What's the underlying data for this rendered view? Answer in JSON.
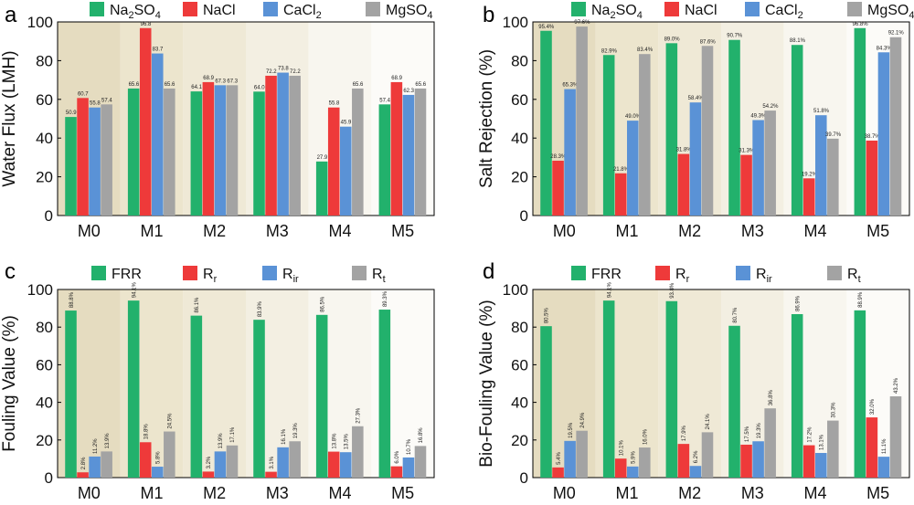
{
  "colors": {
    "green": "#22b16c",
    "red": "#ee3a3a",
    "blue": "#5a92d6",
    "gray": "#a3a3a3"
  },
  "chart_data": [
    {
      "panel_label": "a",
      "type": "bar",
      "ylabel": "Water Flux (LMH)",
      "ylim": [
        0,
        100
      ],
      "yticks": [
        0,
        20,
        40,
        60,
        80,
        100
      ],
      "categories": [
        "M0",
        "M1",
        "M2",
        "M3",
        "M4",
        "M5"
      ],
      "legend": [
        {
          "main": "Na",
          "sub": "2",
          "rest": "SO",
          "sub2": "4"
        },
        {
          "main": "NaCl",
          "sub": "",
          "rest": "",
          "sub2": ""
        },
        {
          "main": "CaCl",
          "sub": "2",
          "rest": "",
          "sub2": ""
        },
        {
          "main": "MgSO",
          "sub": "4",
          "rest": "",
          "sub2": ""
        }
      ],
      "series": [
        {
          "values": [
            50.9,
            65.6,
            64.1,
            64.0,
            27.9,
            57.4
          ],
          "labels": [
            "50.9",
            "65.6",
            "64.1",
            "64.0",
            "27.9",
            "57.4"
          ]
        },
        {
          "values": [
            60.7,
            96.8,
            68.9,
            72.2,
            55.8,
            68.9
          ],
          "labels": [
            "60.7",
            "96.8",
            "68.9",
            "72.2",
            "55.8",
            "68.9"
          ]
        },
        {
          "values": [
            55.8,
            83.7,
            67.3,
            73.8,
            45.9,
            62.3
          ],
          "labels": [
            "55.8",
            "83.7",
            "67.3",
            "73.8",
            "45.9",
            "62.3"
          ]
        },
        {
          "values": [
            57.4,
            65.6,
            67.3,
            72.2,
            65.6,
            65.6
          ],
          "labels": [
            "57.4",
            "65.6",
            "67.3",
            "72.2",
            "65.6",
            "65.6"
          ]
        }
      ]
    },
    {
      "panel_label": "b",
      "type": "bar",
      "ylabel": "Salt Rejection (%)",
      "ylim": [
        0,
        100
      ],
      "yticks": [
        0,
        20,
        40,
        60,
        80,
        100
      ],
      "categories": [
        "M0",
        "M1",
        "M2",
        "M3",
        "M4",
        "M5"
      ],
      "legend": [
        {
          "main": "Na",
          "sub": "2",
          "rest": "SO",
          "sub2": "4"
        },
        {
          "main": "NaCl",
          "sub": "",
          "rest": "",
          "sub2": ""
        },
        {
          "main": "CaCl",
          "sub": "2",
          "rest": "",
          "sub2": ""
        },
        {
          "main": "MgSO",
          "sub": "4",
          "rest": "",
          "sub2": ""
        }
      ],
      "series": [
        {
          "values": [
            95.4,
            82.9,
            89.0,
            90.7,
            88.1,
            96.8
          ],
          "labels": [
            "95.4%",
            "82.9%",
            "89.0%",
            "90.7%",
            "88.1%",
            "96.8%"
          ]
        },
        {
          "values": [
            28.3,
            21.8,
            31.8,
            31.3,
            19.2,
            38.7
          ],
          "labels": [
            "28.3%",
            "21.8%",
            "31.8%",
            "31.3%",
            "19.2%",
            "38.7%"
          ]
        },
        {
          "values": [
            65.3,
            49.0,
            58.4,
            49.3,
            51.8,
            84.3
          ],
          "labels": [
            "65.3%",
            "49.0%",
            "58.4%",
            "49.3%",
            "51.8%",
            "84.3%"
          ]
        },
        {
          "values": [
            97.6,
            83.4,
            87.6,
            54.2,
            39.7,
            92.1
          ],
          "labels": [
            "97.6%",
            "83.4%",
            "87.6%",
            "54.2%",
            "39.7%",
            "92.1%"
          ]
        }
      ]
    },
    {
      "panel_label": "c",
      "type": "bar",
      "ylabel": "Fouling Value (%)",
      "ylim": [
        0,
        100
      ],
      "yticks": [
        0,
        20,
        40,
        60,
        80,
        100
      ],
      "categories": [
        "M0",
        "M1",
        "M2",
        "M3",
        "M4",
        "M5"
      ],
      "legend": [
        {
          "main": "FRR",
          "sub": "",
          "rest": "",
          "sub2": ""
        },
        {
          "main": "R",
          "sub": "r",
          "rest": "",
          "sub2": ""
        },
        {
          "main": "R",
          "sub": "ir",
          "rest": "",
          "sub2": ""
        },
        {
          "main": "R",
          "sub": "t",
          "rest": "",
          "sub2": ""
        }
      ],
      "series": [
        {
          "values": [
            88.8,
            94.1,
            86.1,
            83.9,
            86.5,
            89.3
          ],
          "labels": [
            "88.8%",
            "94.1%",
            "86.1%",
            "83.9%",
            "86.5%",
            "89.3%"
          ]
        },
        {
          "values": [
            2.8,
            18.8,
            3.2,
            3.1,
            13.8,
            6.0
          ],
          "labels": [
            "2.8%",
            "18.8%",
            "3.2%",
            "3.1%",
            "13.8%",
            "6.0%"
          ]
        },
        {
          "values": [
            11.2,
            5.8,
            13.9,
            16.1,
            13.5,
            10.7
          ],
          "labels": [
            "11.2%",
            "5.8%",
            "13.9%",
            "16.1%",
            "13.5%",
            "10.7%"
          ]
        },
        {
          "values": [
            13.9,
            24.5,
            17.1,
            19.3,
            27.3,
            16.8
          ],
          "labels": [
            "13.9%",
            "24.5%",
            "17.1%",
            "19.3%",
            "27.3%",
            "16.8%"
          ]
        }
      ]
    },
    {
      "panel_label": "d",
      "type": "bar",
      "ylabel": "Bio-Fouling Value (%)",
      "ylim": [
        0,
        100
      ],
      "yticks": [
        0,
        20,
        40,
        60,
        80,
        100
      ],
      "categories": [
        "M0",
        "M1",
        "M2",
        "M3",
        "M4",
        "M5"
      ],
      "legend": [
        {
          "main": "FRR",
          "sub": "",
          "rest": "",
          "sub2": ""
        },
        {
          "main": "R",
          "sub": "r",
          "rest": "",
          "sub2": ""
        },
        {
          "main": "R",
          "sub": "ir",
          "rest": "",
          "sub2": ""
        },
        {
          "main": "R",
          "sub": "t",
          "rest": "",
          "sub2": ""
        }
      ],
      "series": [
        {
          "values": [
            80.5,
            94.1,
            93.8,
            80.7,
            86.9,
            88.9
          ],
          "labels": [
            "80.5%",
            "94.1%",
            "93.8%",
            "80.7%",
            "86.9%",
            "88.9%"
          ]
        },
        {
          "values": [
            5.4,
            10.1,
            17.9,
            17.5,
            17.2,
            32.0
          ],
          "labels": [
            "5.4%",
            "10.1%",
            "17.9%",
            "17.5%",
            "17.2%",
            "32.0%"
          ]
        },
        {
          "values": [
            19.5,
            5.9,
            6.2,
            19.3,
            13.1,
            11.1
          ],
          "labels": [
            "19.5%",
            "5.9%",
            "6.2%",
            "19.3%",
            "13.1%",
            "11.1%"
          ]
        },
        {
          "values": [
            24.9,
            16.0,
            24.1,
            36.8,
            30.3,
            43.2
          ],
          "labels": [
            "24.9%",
            "16.0%",
            "24.1%",
            "36.8%",
            "30.3%",
            "43.2%"
          ]
        }
      ]
    }
  ]
}
